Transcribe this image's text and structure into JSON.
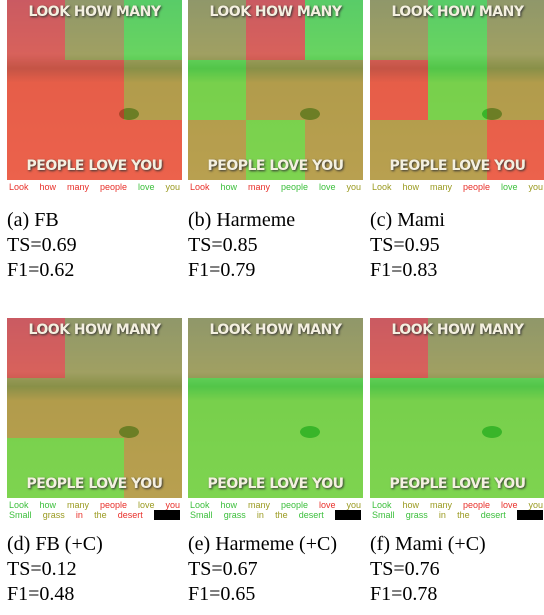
{
  "meme_text": {
    "top": "LOOK HOW MANY",
    "bottom": "PEOPLE LOVE YOU"
  },
  "palette": {
    "r": "#e8302a",
    "g": "#3cbf3c",
    "o": "#9a9a20"
  },
  "panels": [
    {
      "label": "(a) FB",
      "ts": "TS=0.69",
      "f1": "F1=0.62",
      "cells": [
        "r",
        "o",
        "g",
        "r",
        "r",
        "o",
        "r",
        "r",
        "r"
      ],
      "tokens": [
        {
          "text": "Look",
          "color": "r"
        },
        {
          "text": "how",
          "color": "r"
        },
        {
          "text": "many",
          "color": "r"
        },
        {
          "text": "people",
          "color": "r"
        },
        {
          "text": "love",
          "color": "g"
        },
        {
          "text": "you",
          "color": "o"
        }
      ]
    },
    {
      "label": "(b) Harmeme",
      "ts": "TS=0.85",
      "f1": "F1=0.79",
      "cells": [
        "o",
        "r",
        "g",
        "g",
        "o",
        "o",
        "o",
        "g",
        "o"
      ],
      "tokens": [
        {
          "text": "Look",
          "color": "r"
        },
        {
          "text": "how",
          "color": "g"
        },
        {
          "text": "many",
          "color": "r"
        },
        {
          "text": "people",
          "color": "g"
        },
        {
          "text": "love",
          "color": "g"
        },
        {
          "text": "you",
          "color": "o"
        }
      ]
    },
    {
      "label": "(c) Mami",
      "ts": "TS=0.95",
      "f1": "F1=0.83",
      "cells": [
        "o",
        "g",
        "o",
        "r",
        "g",
        "o",
        "o",
        "o",
        "r"
      ],
      "tokens": [
        {
          "text": "Look",
          "color": "o"
        },
        {
          "text": "how",
          "color": "o"
        },
        {
          "text": "many",
          "color": "o"
        },
        {
          "text": "people",
          "color": "r"
        },
        {
          "text": "love",
          "color": "g"
        },
        {
          "text": "you",
          "color": "o"
        }
      ]
    },
    {
      "label": "(d) FB (+C)",
      "ts": "TS=0.12",
      "f1": "F1=0.48",
      "cells": [
        "r",
        "o",
        "o",
        "o",
        "o",
        "o",
        "g",
        "g",
        "o"
      ],
      "tokens": [
        {
          "text": "Look",
          "color": "g"
        },
        {
          "text": "how",
          "color": "g"
        },
        {
          "text": "many",
          "color": "o"
        },
        {
          "text": "people",
          "color": "r"
        },
        {
          "text": "love",
          "color": "o"
        },
        {
          "text": "you",
          "color": "r"
        }
      ],
      "context_tokens": [
        {
          "text": "Small",
          "color": "g"
        },
        {
          "text": "grass",
          "color": "o"
        },
        {
          "text": "in",
          "color": "r"
        },
        {
          "text": "the",
          "color": "o"
        },
        {
          "text": "desert",
          "color": "r"
        }
      ]
    },
    {
      "label": "(e) Harmeme (+C)",
      "ts": "TS=0.67",
      "f1": "F1=0.65",
      "cells": [
        "o",
        "o",
        "o",
        "g",
        "g",
        "g",
        "g",
        "g",
        "g"
      ],
      "tokens": [
        {
          "text": "Look",
          "color": "g"
        },
        {
          "text": "how",
          "color": "g"
        },
        {
          "text": "many",
          "color": "o"
        },
        {
          "text": "people",
          "color": "g"
        },
        {
          "text": "love",
          "color": "r"
        },
        {
          "text": "you",
          "color": "o"
        }
      ],
      "context_tokens": [
        {
          "text": "Small",
          "color": "g"
        },
        {
          "text": "grass",
          "color": "g"
        },
        {
          "text": "in",
          "color": "o"
        },
        {
          "text": "the",
          "color": "o"
        },
        {
          "text": "desert",
          "color": "g"
        }
      ]
    },
    {
      "label": "(f) Mami (+C)",
      "ts": "TS=0.76",
      "f1": "F1=0.78",
      "cells": [
        "r",
        "o",
        "o",
        "g",
        "g",
        "g",
        "g",
        "g",
        "g"
      ],
      "tokens": [
        {
          "text": "Look",
          "color": "g"
        },
        {
          "text": "how",
          "color": "o"
        },
        {
          "text": "many",
          "color": "o"
        },
        {
          "text": "people",
          "color": "r"
        },
        {
          "text": "love",
          "color": "r"
        },
        {
          "text": "you",
          "color": "o"
        }
      ],
      "context_tokens": [
        {
          "text": "Small",
          "color": "g"
        },
        {
          "text": "grass",
          "color": "g"
        },
        {
          "text": "in",
          "color": "o"
        },
        {
          "text": "the",
          "color": "o"
        },
        {
          "text": "desert",
          "color": "g"
        }
      ]
    }
  ]
}
